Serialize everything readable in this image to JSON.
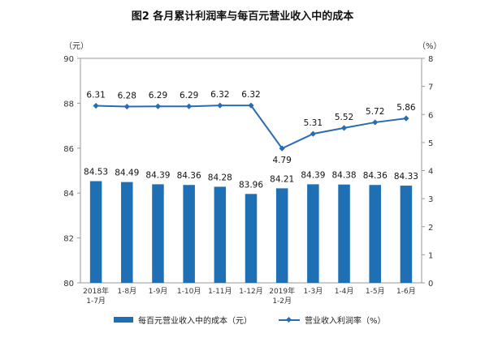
{
  "title": "图2  各月累计利润率与每百元营业收入中的成本",
  "left_unit": "（元）",
  "right_unit": "（%）",
  "legend": {
    "bar_label": "每百元营业收入中的成本（元）",
    "line_label": "营业收入利润率（%）"
  },
  "colors": {
    "bar": "#1f6fb5",
    "line": "#2b6cb0",
    "axis": "#9a9a9a"
  },
  "chart_data": {
    "type": "bar+line",
    "categories": [
      [
        "2018年",
        "1-7月"
      ],
      [
        "1-8月"
      ],
      [
        "1-9月"
      ],
      [
        "1-10月"
      ],
      [
        "1-11月"
      ],
      [
        "1-12月"
      ],
      [
        "2019年",
        "1-2月"
      ],
      [
        "1-3月"
      ],
      [
        "1-4月"
      ],
      [
        "1-5月"
      ],
      [
        "1-6月"
      ]
    ],
    "series": [
      {
        "name": "每百元营业收入中的成本（元）",
        "type": "bar",
        "axis": "left",
        "values": [
          84.53,
          84.49,
          84.39,
          84.36,
          84.28,
          83.96,
          84.21,
          84.39,
          84.38,
          84.36,
          84.33
        ]
      },
      {
        "name": "营业收入利润率（%）",
        "type": "line",
        "axis": "right",
        "values": [
          6.31,
          6.28,
          6.29,
          6.29,
          6.32,
          6.32,
          4.79,
          5.31,
          5.52,
          5.72,
          5.86
        ]
      }
    ],
    "left_axis": {
      "ylim": [
        80,
        90
      ],
      "ticks": [
        80,
        82,
        84,
        86,
        88,
        90
      ]
    },
    "right_axis": {
      "ylim": [
        0,
        8
      ],
      "ticks": [
        0,
        1,
        2,
        3,
        4,
        5,
        6,
        7,
        8
      ]
    },
    "grid": false,
    "legend_position": "bottom"
  }
}
